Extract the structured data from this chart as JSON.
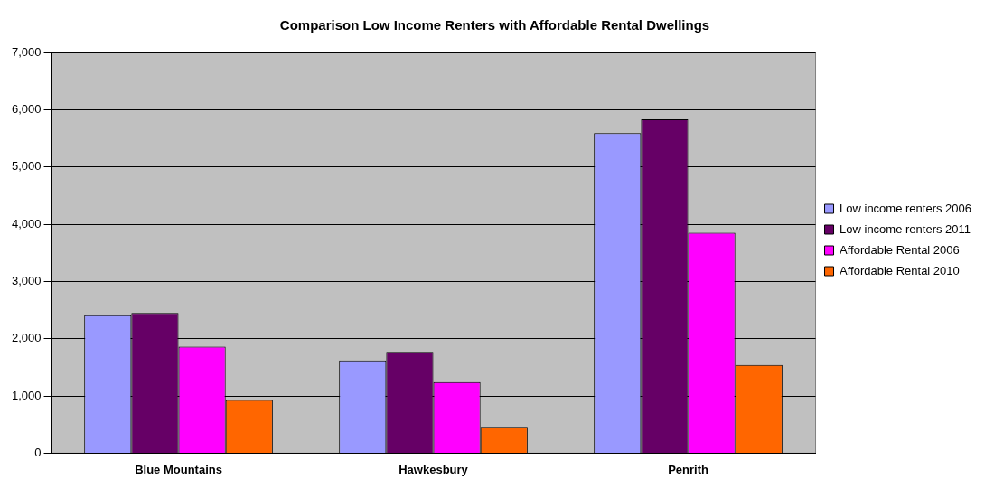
{
  "chart_data": {
    "type": "bar",
    "title": "Comparison Low Income Renters with Affordable Rental Dwellings",
    "categories": [
      "Blue Mountains",
      "Hawkesbury",
      "Penrith"
    ],
    "series": [
      {
        "name": "Low income renters 2006",
        "color": "#9999ff",
        "values": [
          2410,
          1620,
          5590
        ]
      },
      {
        "name": "Low income renters 2011",
        "color": "#660066",
        "values": [
          2450,
          1770,
          5830
        ]
      },
      {
        "name": "Affordable Rental 2006",
        "color": "#ff00ff",
        "values": [
          1860,
          1240,
          3850
        ]
      },
      {
        "name": "Affordable Rental 2010",
        "color": "#ff6600",
        "values": [
          930,
          460,
          1540
        ]
      }
    ],
    "ylim": [
      0,
      7000
    ],
    "yticks": [
      0,
      {
        "value": 1000,
        "label": "1,000"
      },
      {
        "value": 2000,
        "label": "2,000"
      },
      {
        "value": 3000,
        "label": "3,000"
      },
      {
        "value": 4000,
        "label": "4,000"
      },
      {
        "value": 5000,
        "label": "5,000"
      },
      {
        "value": 6000,
        "label": "6,000"
      },
      {
        "value": 7000,
        "label": "7,000"
      }
    ],
    "grid": "y",
    "legend": "right"
  }
}
